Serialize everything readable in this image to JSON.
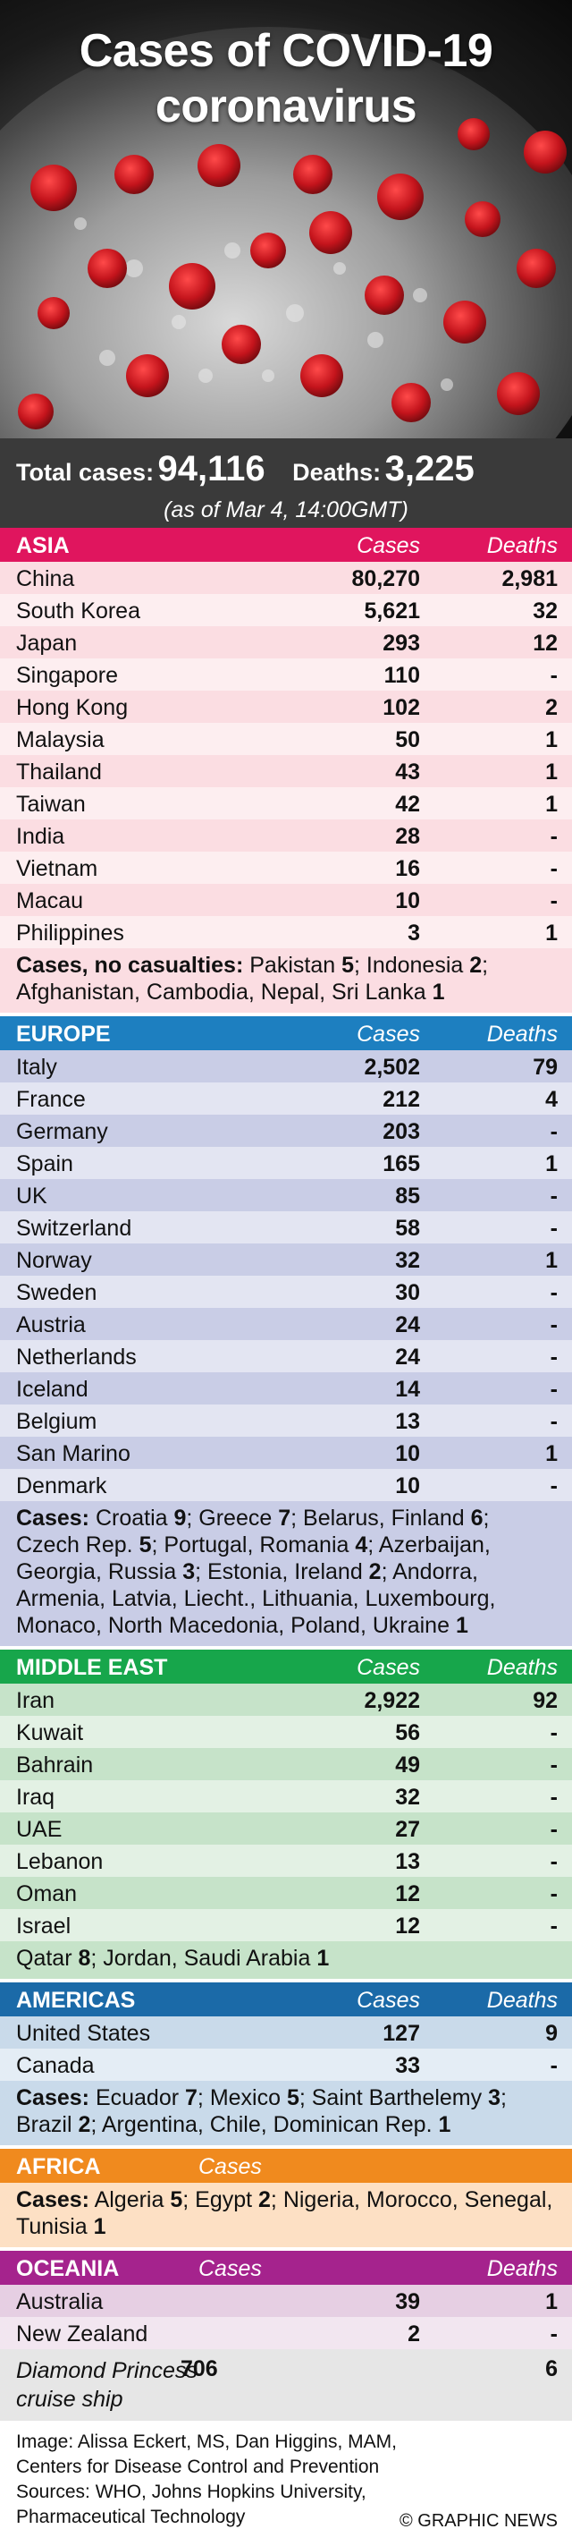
{
  "header": {
    "title_line1": "Cases of COVID-19",
    "title_line2": "coronavirus"
  },
  "totals": {
    "total_label": "Total cases:",
    "total_value": "94,116",
    "deaths_label": "Deaths:",
    "deaths_value": "3,225",
    "as_of": "(as of Mar 4, 14:00GMT)"
  },
  "columns": {
    "cases": "Cases",
    "deaths": "Deaths"
  },
  "asia": {
    "name": "ASIA",
    "rows": [
      {
        "country": "China",
        "cases": "80,270",
        "deaths": "2,981"
      },
      {
        "country": "South Korea",
        "cases": "5,621",
        "deaths": "32"
      },
      {
        "country": "Japan",
        "cases": "293",
        "deaths": "12"
      },
      {
        "country": "Singapore",
        "cases": "110",
        "deaths": "-"
      },
      {
        "country": "Hong Kong",
        "cases": "102",
        "deaths": "2"
      },
      {
        "country": "Malaysia",
        "cases": "50",
        "deaths": "1"
      },
      {
        "country": "Thailand",
        "cases": "43",
        "deaths": "1"
      },
      {
        "country": "Taiwan",
        "cases": "42",
        "deaths": "1"
      },
      {
        "country": "India",
        "cases": "28",
        "deaths": "-"
      },
      {
        "country": "Vietnam",
        "cases": "16",
        "deaths": "-"
      },
      {
        "country": "Macau",
        "cases": "10",
        "deaths": "-"
      },
      {
        "country": "Philippines",
        "cases": "3",
        "deaths": "1"
      }
    ],
    "note_label": "Cases, no casualties:",
    "note_parts": [
      {
        "t": " Pakistan ",
        "b": "5"
      },
      {
        "t": "; Indonesia ",
        "b": "2"
      },
      {
        "t": "; Afghanistan, Cambodia, Nepal, Sri Lanka ",
        "b": "1"
      }
    ]
  },
  "europe": {
    "name": "EUROPE",
    "rows": [
      {
        "country": "Italy",
        "cases": "2,502",
        "deaths": "79"
      },
      {
        "country": "France",
        "cases": "212",
        "deaths": "4"
      },
      {
        "country": "Germany",
        "cases": "203",
        "deaths": "-"
      },
      {
        "country": "Spain",
        "cases": "165",
        "deaths": "1"
      },
      {
        "country": "UK",
        "cases": "85",
        "deaths": "-"
      },
      {
        "country": "Switzerland",
        "cases": "58",
        "deaths": "-"
      },
      {
        "country": "Norway",
        "cases": "32",
        "deaths": "1"
      },
      {
        "country": "Sweden",
        "cases": "30",
        "deaths": "-"
      },
      {
        "country": "Austria",
        "cases": "24",
        "deaths": "-"
      },
      {
        "country": "Netherlands",
        "cases": "24",
        "deaths": "-"
      },
      {
        "country": "Iceland",
        "cases": "14",
        "deaths": "-"
      },
      {
        "country": "Belgium",
        "cases": "13",
        "deaths": "-"
      },
      {
        "country": "San Marino",
        "cases": "10",
        "deaths": "1"
      },
      {
        "country": "Denmark",
        "cases": "10",
        "deaths": "-"
      }
    ],
    "note_label": "Cases:",
    "note_parts": [
      {
        "t": " Croatia ",
        "b": "9"
      },
      {
        "t": "; Greece ",
        "b": "7"
      },
      {
        "t": "; Belarus, Finland ",
        "b": "6"
      },
      {
        "t": "; Czech Rep. ",
        "b": "5"
      },
      {
        "t": "; Portugal, Romania ",
        "b": "4"
      },
      {
        "t": "; Azerbaijan, Georgia, Russia ",
        "b": "3"
      },
      {
        "t": "; Estonia, Ireland ",
        "b": "2"
      },
      {
        "t": "; Andorra, Armenia, Latvia, Liecht., Lithuania, Luxembourg, Monaco, North Macedonia, Poland, Ukraine ",
        "b": "1"
      }
    ]
  },
  "mideast": {
    "name": "MIDDLE EAST",
    "rows": [
      {
        "country": "Iran",
        "cases": "2,922",
        "deaths": "92"
      },
      {
        "country": "Kuwait",
        "cases": "56",
        "deaths": "-"
      },
      {
        "country": "Bahrain",
        "cases": "49",
        "deaths": "-"
      },
      {
        "country": "Iraq",
        "cases": "32",
        "deaths": "-"
      },
      {
        "country": "UAE",
        "cases": "27",
        "deaths": "-"
      },
      {
        "country": "Lebanon",
        "cases": "13",
        "deaths": "-"
      },
      {
        "country": "Oman",
        "cases": "12",
        "deaths": "-"
      },
      {
        "country": "Israel",
        "cases": "12",
        "deaths": "-"
      }
    ],
    "note_parts": [
      {
        "t": "Qatar ",
        "b": "8"
      },
      {
        "t": "; Jordan, Saudi Arabia ",
        "b": "1"
      }
    ]
  },
  "americas": {
    "name": "AMERICAS",
    "rows": [
      {
        "country": "United States",
        "cases": "127",
        "deaths": "9"
      },
      {
        "country": "Canada",
        "cases": "33",
        "deaths": "-"
      }
    ],
    "note_label": "Cases:",
    "note_parts": [
      {
        "t": " Ecuador ",
        "b": "7"
      },
      {
        "t": "; Mexico ",
        "b": "5"
      },
      {
        "t": "; Saint Barthelemy ",
        "b": "3"
      },
      {
        "t": "; Brazil ",
        "b": "2"
      },
      {
        "t": "; Argentina, Chile, Dominican Rep. ",
        "b": "1"
      }
    ]
  },
  "africa": {
    "name": "AFRICA",
    "note_label": "Cases:",
    "note_parts": [
      {
        "t": " Algeria ",
        "b": "5"
      },
      {
        "t": "; Egypt ",
        "b": "2"
      },
      {
        "t": "; Nigeria, Morocco, Senegal, Tunisia ",
        "b": "1"
      }
    ]
  },
  "oceania": {
    "name": "OCEANIA",
    "rows": [
      {
        "country": "Australia",
        "cases": "39",
        "deaths": "1"
      },
      {
        "country": "New Zealand",
        "cases": "2",
        "deaths": "-"
      }
    ]
  },
  "ship": {
    "name_line1": "Diamond Princess",
    "name_line2": "cruise ship",
    "cases": "706",
    "deaths": "6"
  },
  "footer": {
    "line1": "Image: Alissa Eckert, MS, Dan Higgins, MAM,",
    "line2": "Centers for Disease Control and Prevention",
    "line3": "Sources: WHO, Johns Hopkins University,",
    "line4": "Pharmaceutical Technology",
    "credit": "© GRAPHIC NEWS"
  },
  "colors": {
    "asia": "#e0155e",
    "europe": "#1d7fc0",
    "mideast": "#17a64b",
    "americas": "#1b6aa8",
    "africa": "#f08a1e",
    "oceania": "#a5238d",
    "totals_bg": "#3a3a3a"
  }
}
